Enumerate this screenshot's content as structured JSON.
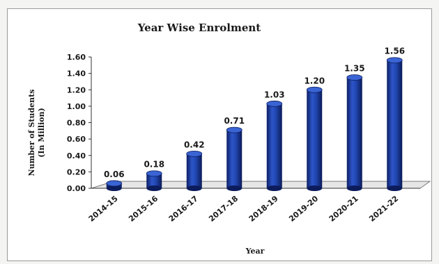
{
  "chart_data": {
    "type": "bar",
    "title": "Year Wise Enrolment",
    "xlabel": "Year",
    "ylabel": "Number of Students",
    "ylabel_line2": "(In Million)",
    "categories": [
      "2014-15",
      "2015-16",
      "2016-17",
      "2017-18",
      "2018-19",
      "2019-20",
      "2020-21",
      "2021-22"
    ],
    "values": [
      0.06,
      0.18,
      0.42,
      0.71,
      1.03,
      1.2,
      1.35,
      1.56
    ],
    "data_labels": [
      "0.06",
      "0.18",
      "0.42",
      "0.71",
      "1.03",
      "1.20",
      "1.35",
      "1.56"
    ],
    "ylim": [
      0,
      1.6
    ],
    "yticks": [
      "0.00",
      "0.20",
      "0.40",
      "0.60",
      "0.80",
      "1.00",
      "1.20",
      "1.40",
      "1.60"
    ],
    "grid": false,
    "legend": "none",
    "bar_color": "#1f3f9e"
  }
}
